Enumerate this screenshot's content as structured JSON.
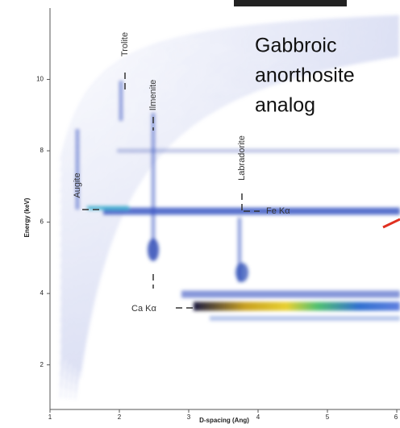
{
  "chart_data": {
    "type": "density",
    "title_lines": [
      "Gabbroic",
      "anorthosite",
      "analog"
    ],
    "x_label": "D-spacing (Ang)",
    "y_label": "Energy (keV)",
    "xlim": [
      1,
      6
    ],
    "xticks": [
      1,
      2,
      3,
      4,
      5,
      6
    ],
    "ylim": [
      0.75,
      12
    ],
    "yticks": [
      2,
      4,
      6,
      8,
      10
    ],
    "annotations": [
      "Trolite",
      "Ilmenite",
      "Augite",
      "Labradorite",
      "Fe Kα",
      "Ca Kα"
    ]
  }
}
